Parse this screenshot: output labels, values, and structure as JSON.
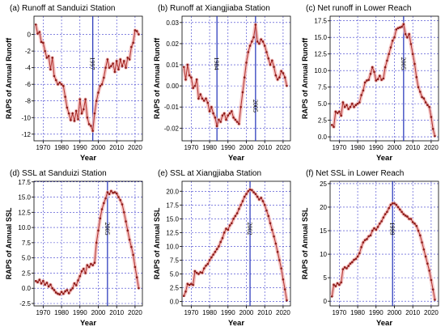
{
  "style": {
    "line_color": "#b0302c",
    "marker_color": "#8c1c1a",
    "band_color": "#f2b8b8",
    "vline_color": "#1f2fb8",
    "grid_color": "#3a3acd"
  },
  "chart_data": [
    {
      "type": "line",
      "title": "(a) Runoff at Sanduizi Station",
      "xlabel": "Year",
      "ylabel": "RAPS of Annual Runoff",
      "xlim": [
        1965,
        2024
      ],
      "ylim": [
        -12.8,
        2.2
      ],
      "xticks": [
        1970,
        1980,
        1990,
        2000,
        2010,
        2020
      ],
      "xtick_labels": [
        "1970",
        "1980",
        "1990",
        "2000",
        "2010",
        "2020"
      ],
      "yticks": [
        -12,
        -10,
        -8,
        -6,
        -4,
        -2,
        0
      ],
      "ytick_labels": [
        "-12",
        "-10",
        "-8",
        "-6",
        "-4",
        "-2",
        "0"
      ],
      "change_year": 1997,
      "change_label": "1997",
      "x": [
        1966,
        1967,
        1968,
        1969,
        1970,
        1971,
        1972,
        1973,
        1974,
        1975,
        1976,
        1977,
        1978,
        1979,
        1980,
        1981,
        1982,
        1983,
        1984,
        1985,
        1986,
        1987,
        1988,
        1989,
        1990,
        1991,
        1992,
        1993,
        1994,
        1995,
        1996,
        1997,
        1998,
        1999,
        2000,
        2001,
        2002,
        2003,
        2004,
        2005,
        2006,
        2007,
        2008,
        2009,
        2010,
        2011,
        2012,
        2013,
        2014,
        2015,
        2016,
        2017,
        2018,
        2019,
        2020,
        2021,
        2022
      ],
      "y": [
        1.2,
        0.1,
        0.3,
        -0.9,
        -1.0,
        -2.0,
        -2.8,
        -2.6,
        -4.2,
        -2.8,
        -5.0,
        -5.5,
        -6.0,
        -5.8,
        -6.0,
        -6.2,
        -7.5,
        -8.8,
        -9.5,
        -10.3,
        -9.5,
        -10.4,
        -9.2,
        -10.2,
        -7.8,
        -9.5,
        -9.0,
        -7.8,
        -10.0,
        -10.8,
        -11.0,
        -11.6,
        -9.5,
        -8.0,
        -7.0,
        -6.2,
        -6.0,
        -5.2,
        -4.0,
        -3.0,
        -4.0,
        -3.8,
        -3.5,
        -4.5,
        -3.2,
        -4.2,
        -3.0,
        -3.8,
        -3.2,
        -4.0,
        -2.8,
        -3.0,
        -1.5,
        -1.0,
        0.5,
        0.4,
        0.0
      ]
    },
    {
      "type": "line",
      "title": "(b) Runoff at Xiangjiaba Station",
      "xlabel": "Year",
      "ylabel": "RAPS of Annual Runoff",
      "xlim": [
        1965,
        2024
      ],
      "ylim": [
        -0.026,
        0.033
      ],
      "xticks": [
        1970,
        1980,
        1990,
        2000,
        2010,
        2020
      ],
      "xtick_labels": [
        "1970",
        "1980",
        "1990",
        "2000",
        "2010",
        "2020"
      ],
      "yticks": [
        -0.02,
        -0.01,
        0.0,
        0.01,
        0.02,
        0.03
      ],
      "ytick_labels": [
        "-0.02",
        "-0.01",
        "0.00",
        "0.01",
        "0.02",
        "0.03"
      ],
      "change_years": [
        1984,
        2005
      ],
      "change_labels": [
        "1984",
        "2005"
      ],
      "x": [
        1966,
        1967,
        1968,
        1969,
        1970,
        1971,
        1972,
        1973,
        1974,
        1975,
        1976,
        1977,
        1978,
        1979,
        1980,
        1981,
        1982,
        1983,
        1984,
        1985,
        1986,
        1987,
        1988,
        1989,
        1990,
        1991,
        1992,
        1993,
        1994,
        1995,
        1996,
        1997,
        1998,
        1999,
        2000,
        2001,
        2002,
        2003,
        2004,
        2005,
        2006,
        2007,
        2008,
        2009,
        2010,
        2011,
        2012,
        2013,
        2014,
        2015,
        2016,
        2017,
        2018,
        2019,
        2020,
        2021,
        2022
      ],
      "y": [
        0.009,
        0.003,
        0.01,
        0.005,
        0.004,
        -0.001,
        0.0,
        0.003,
        -0.006,
        -0.004,
        -0.006,
        -0.007,
        -0.006,
        -0.008,
        -0.012,
        -0.01,
        -0.013,
        -0.015,
        -0.019,
        -0.016,
        -0.017,
        -0.014,
        -0.013,
        -0.016,
        -0.014,
        -0.013,
        -0.012,
        -0.015,
        -0.016,
        -0.017,
        -0.018,
        -0.01,
        -0.003,
        0.004,
        0.011,
        0.016,
        0.019,
        0.021,
        0.023,
        0.029,
        0.021,
        0.02,
        0.022,
        0.021,
        0.019,
        0.016,
        0.013,
        0.01,
        0.012,
        0.009,
        0.005,
        0.003,
        0.004,
        0.007,
        0.006,
        0.004,
        0.0
      ]
    },
    {
      "type": "line",
      "title": "(c) Net runoff in Lower Reach",
      "xlabel": "Year",
      "ylabel": "RAPS of Annual Runoff",
      "xlim": [
        1965,
        2024
      ],
      "ylim": [
        -0.6,
        18.2
      ],
      "xticks": [
        1970,
        1980,
        1990,
        2000,
        2010,
        2020
      ],
      "xtick_labels": [
        "1970",
        "1980",
        "1990",
        "2000",
        "2010",
        "2020"
      ],
      "yticks": [
        0.0,
        2.5,
        5.0,
        7.5,
        10.0,
        12.5,
        15.0,
        17.5
      ],
      "ytick_labels": [
        "0.0",
        "2.5",
        "5.0",
        "7.5",
        "10.0",
        "12.5",
        "15.0",
        "17.5"
      ],
      "change_year": 2005,
      "change_label": "2005",
      "x": [
        1966,
        1967,
        1968,
        1969,
        1970,
        1971,
        1972,
        1973,
        1974,
        1975,
        1976,
        1977,
        1978,
        1979,
        1980,
        1981,
        1982,
        1983,
        1984,
        1985,
        1986,
        1987,
        1988,
        1989,
        1990,
        1991,
        1992,
        1993,
        1994,
        1995,
        1996,
        1997,
        1998,
        1999,
        2000,
        2001,
        2002,
        2003,
        2004,
        2005,
        2006,
        2007,
        2008,
        2009,
        2010,
        2011,
        2012,
        2013,
        2014,
        2015,
        2016,
        2017,
        2018,
        2019,
        2020,
        2021,
        2022
      ],
      "y": [
        1.8,
        1.5,
        3.8,
        3.6,
        3.8,
        3.2,
        5.2,
        4.5,
        4.8,
        4.2,
        4.5,
        5.0,
        4.5,
        4.8,
        5.0,
        5.2,
        6.3,
        7.0,
        8.2,
        8.5,
        8.6,
        9.5,
        10.5,
        9.8,
        8.5,
        8.7,
        9.2,
        8.6,
        8.8,
        10.5,
        11.5,
        12.5,
        13.5,
        14.5,
        15.0,
        16.2,
        16.4,
        16.5,
        16.6,
        17.0,
        15.5,
        15.0,
        15.5,
        14.0,
        12.5,
        11.0,
        9.0,
        7.5,
        6.8,
        6.0,
        5.8,
        5.2,
        4.8,
        4.5,
        3.0,
        1.2,
        0.1
      ]
    },
    {
      "type": "line",
      "title": "(d) SSL at Sanduizi Station",
      "xlabel": "Year",
      "ylabel": "RAPS of Annual SSL",
      "xlim": [
        1965,
        2024
      ],
      "ylim": [
        -2.9,
        17.6
      ],
      "xticks": [
        1970,
        1980,
        1990,
        2000,
        2010,
        2020
      ],
      "xtick_labels": [
        "1970",
        "1980",
        "1990",
        "2000",
        "2010",
        "2020"
      ],
      "yticks": [
        -2.5,
        0.0,
        2.5,
        5.0,
        7.5,
        10.0,
        12.5,
        15.0,
        17.5
      ],
      "ytick_labels": [
        "-2.5",
        "0.0",
        "2.5",
        "5.0",
        "7.5",
        "10.0",
        "12.5",
        "15.0",
        "17.5"
      ],
      "change_year": 2005,
      "change_label": "2005",
      "x": [
        1966,
        1967,
        1968,
        1969,
        1970,
        1971,
        1972,
        1973,
        1974,
        1975,
        1976,
        1977,
        1978,
        1979,
        1980,
        1981,
        1982,
        1983,
        1984,
        1985,
        1986,
        1987,
        1988,
        1989,
        1990,
        1991,
        1992,
        1993,
        1994,
        1995,
        1996,
        1997,
        1998,
        1999,
        2000,
        2001,
        2002,
        2003,
        2004,
        2005,
        2006,
        2007,
        2008,
        2009,
        2010,
        2011,
        2012,
        2013,
        2014,
        2015,
        2016,
        2017,
        2018,
        2019,
        2020,
        2021,
        2022
      ],
      "y": [
        1.2,
        1.0,
        1.4,
        0.8,
        1.2,
        0.6,
        0.9,
        0.3,
        0.6,
        0.0,
        -0.3,
        -0.7,
        -0.9,
        -1.0,
        -0.6,
        -0.9,
        -0.5,
        -0.3,
        -0.8,
        -0.3,
        0.0,
        0.8,
        0.5,
        1.3,
        2.0,
        2.8,
        3.2,
        2.5,
        3.8,
        3.5,
        4.0,
        3.8,
        4.2,
        7.5,
        9.5,
        11.5,
        13.0,
        14.0,
        14.8,
        15.8,
        15.5,
        16.0,
        15.7,
        15.8,
        15.6,
        15.0,
        14.5,
        13.8,
        12.5,
        11.0,
        9.5,
        8.0,
        6.8,
        5.5,
        3.5,
        1.8,
        0.0
      ]
    },
    {
      "type": "line",
      "title": "(e) SSL at Xiangjiaba Station",
      "xlabel": "Year",
      "ylabel": "RAPS of Annual SSL",
      "xlim": [
        1965,
        2024
      ],
      "ylim": [
        -0.8,
        21.8
      ],
      "xticks": [
        1970,
        1980,
        1990,
        2000,
        2010,
        2020
      ],
      "xtick_labels": [
        "1970",
        "1980",
        "1990",
        "2000",
        "2010",
        "2020"
      ],
      "yticks": [
        0.0,
        2.5,
        5.0,
        7.5,
        10.0,
        12.5,
        15.0,
        17.5,
        20.0
      ],
      "ytick_labels": [
        "0.0",
        "2.5",
        "5.0",
        "7.5",
        "10.0",
        "12.5",
        "15.0",
        "17.5",
        "20.0"
      ],
      "change_year": 2002,
      "change_label": "2002",
      "x": [
        1966,
        1967,
        1968,
        1969,
        1970,
        1971,
        1972,
        1973,
        1974,
        1975,
        1976,
        1977,
        1978,
        1979,
        1980,
        1981,
        1982,
        1983,
        1984,
        1985,
        1986,
        1987,
        1988,
        1989,
        1990,
        1991,
        1992,
        1993,
        1994,
        1995,
        1996,
        1997,
        1998,
        1999,
        2000,
        2001,
        2002,
        2003,
        2004,
        2005,
        2006,
        2007,
        2008,
        2009,
        2010,
        2011,
        2012,
        2013,
        2014,
        2015,
        2016,
        2017,
        2018,
        2019,
        2020,
        2021,
        2022
      ],
      "y": [
        1.0,
        1.8,
        3.2,
        3.0,
        3.2,
        3.0,
        5.5,
        5.2,
        5.0,
        5.3,
        5.2,
        6.0,
        6.5,
        6.8,
        7.5,
        8.0,
        8.5,
        9.0,
        9.5,
        10.0,
        10.8,
        11.5,
        12.5,
        13.2,
        13.0,
        13.8,
        14.2,
        15.0,
        15.5,
        16.0,
        16.8,
        17.5,
        18.2,
        19.0,
        19.5,
        20.0,
        20.3,
        20.2,
        19.8,
        19.5,
        19.0,
        18.5,
        18.8,
        18.2,
        17.5,
        16.5,
        15.5,
        14.2,
        13.0,
        11.8,
        10.5,
        9.0,
        7.5,
        6.0,
        4.0,
        2.2,
        0.2
      ]
    },
    {
      "type": "line",
      "title": "(f) Net SSL in Lower Reach",
      "xlabel": "Year",
      "ylabel": "RAPS of Annual SSL",
      "xlim": [
        1965,
        2024
      ],
      "ylim": [
        -1.0,
        25.5
      ],
      "xticks": [
        1970,
        1980,
        1990,
        2000,
        2010,
        2020
      ],
      "xtick_labels": [
        "1970",
        "1980",
        "1990",
        "2000",
        "2010",
        "2020"
      ],
      "yticks": [
        0,
        5,
        10,
        15,
        20,
        25
      ],
      "ytick_labels": [
        "0",
        "5",
        "10",
        "15",
        "20",
        "25"
      ],
      "change_year": 1999,
      "change_label": "1999",
      "x": [
        1966,
        1967,
        1968,
        1969,
        1970,
        1971,
        1972,
        1973,
        1974,
        1975,
        1976,
        1977,
        1978,
        1979,
        1980,
        1981,
        1982,
        1983,
        1984,
        1985,
        1986,
        1987,
        1988,
        1989,
        1990,
        1991,
        1992,
        1993,
        1994,
        1995,
        1996,
        1997,
        1998,
        1999,
        2000,
        2001,
        2002,
        2003,
        2004,
        2005,
        2006,
        2007,
        2008,
        2009,
        2010,
        2011,
        2012,
        2013,
        2014,
        2015,
        2016,
        2017,
        2018,
        2019,
        2020,
        2021,
        2022
      ],
      "y": [
        1.0,
        3.5,
        3.2,
        3.8,
        3.5,
        4.0,
        6.8,
        7.2,
        7.0,
        7.5,
        8.0,
        8.3,
        8.8,
        9.0,
        9.5,
        10.2,
        11.5,
        12.5,
        13.0,
        13.2,
        13.8,
        14.0,
        15.0,
        15.5,
        15.2,
        15.8,
        16.5,
        17.0,
        17.8,
        18.5,
        19.0,
        19.8,
        20.5,
        20.8,
        20.8,
        20.5,
        20.0,
        19.5,
        19.0,
        18.5,
        18.2,
        18.0,
        17.5,
        17.5,
        16.8,
        16.5,
        16.0,
        15.0,
        14.0,
        12.5,
        11.0,
        9.5,
        8.0,
        6.5,
        4.5,
        2.5,
        0.3
      ]
    }
  ]
}
